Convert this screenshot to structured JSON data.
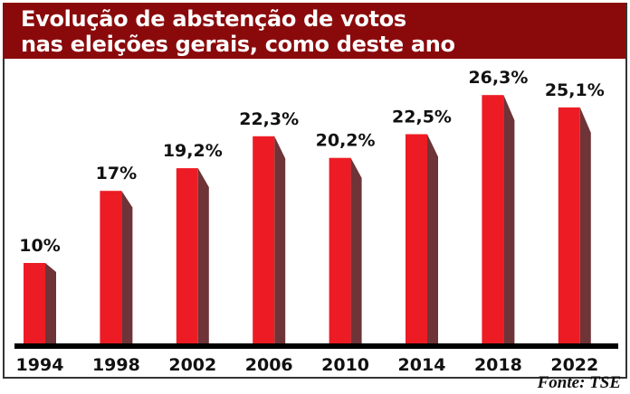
{
  "chart_data": {
    "type": "bar",
    "title": "Evolução de abstenção de votos\nnas eleições gerais, como deste ano",
    "categories": [
      "1994",
      "1998",
      "2002",
      "2006",
      "2010",
      "2014",
      "2018",
      "2022"
    ],
    "values": [
      10,
      17,
      19.2,
      22.3,
      20.2,
      22.5,
      26.3,
      25.1
    ],
    "data_labels": [
      "10%",
      "17%",
      "19,2%",
      "22,3%",
      "20,2%",
      "22,5%",
      "26,3%",
      "25,1%"
    ],
    "unit": "%",
    "grid": false,
    "style": "3d-bar",
    "colors": {
      "bar_front": "#ed1c24",
      "bar_side": "#6e3438",
      "header": "#8a0a0b",
      "baseline": "#000000"
    }
  },
  "source": "Fonte: TSE"
}
